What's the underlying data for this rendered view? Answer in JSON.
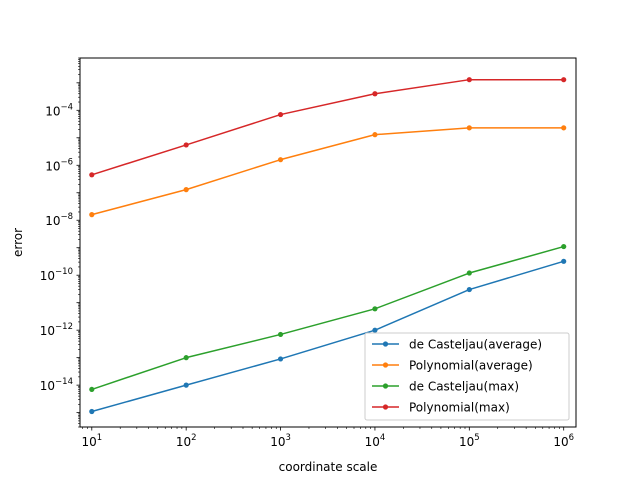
{
  "chart_data": {
    "type": "line",
    "title": "",
    "xlabel": "coordinate scale",
    "ylabel": "error",
    "xscale": "log",
    "yscale": "log",
    "xlim": [
      7.5,
      1350000.0
    ],
    "ylim": [
      3e-16,
      0.008
    ],
    "grid": false,
    "legend_position": "lower-right",
    "x": [
      10,
      100,
      1000,
      10000,
      100000,
      1000000
    ],
    "x_ticks": [
      {
        "value": 10,
        "mantissa": "10",
        "exp": "1"
      },
      {
        "value": 100,
        "mantissa": "10",
        "exp": "2"
      },
      {
        "value": 1000,
        "mantissa": "10",
        "exp": "3"
      },
      {
        "value": 10000,
        "mantissa": "10",
        "exp": "4"
      },
      {
        "value": 100000,
        "mantissa": "10",
        "exp": "5"
      },
      {
        "value": 1000000,
        "mantissa": "10",
        "exp": "6"
      }
    ],
    "y_ticks": [
      {
        "value": 1e-14,
        "mantissa": "10",
        "exp": "−14"
      },
      {
        "value": 1e-12,
        "mantissa": "10",
        "exp": "−12"
      },
      {
        "value": 1e-10,
        "mantissa": "10",
        "exp": "−10"
      },
      {
        "value": 1e-08,
        "mantissa": "10",
        "exp": "−8"
      },
      {
        "value": 1e-06,
        "mantissa": "10",
        "exp": "−6"
      },
      {
        "value": 0.0001,
        "mantissa": "10",
        "exp": "−4"
      }
    ],
    "series": [
      {
        "name": "de Casteljau(average)",
        "color": "#1f77b4",
        "values": [
          1.1e-15,
          1e-14,
          9e-14,
          1e-12,
          3e-11,
          3.2e-10
        ]
      },
      {
        "name": "Polynomial(average)",
        "color": "#ff7f0e",
        "values": [
          1.6e-08,
          1.3e-07,
          1.6e-06,
          1.3e-05,
          2.3e-05,
          2.3e-05
        ]
      },
      {
        "name": "de Casteljau(max)",
        "color": "#2ca02c",
        "values": [
          7e-15,
          1e-13,
          7e-13,
          6e-12,
          1.2e-10,
          1.1e-09
        ]
      },
      {
        "name": "Polynomial(max)",
        "color": "#d62728",
        "values": [
          4.5e-07,
          5.5e-06,
          7e-05,
          0.0004,
          0.0013,
          0.0013
        ]
      }
    ]
  }
}
